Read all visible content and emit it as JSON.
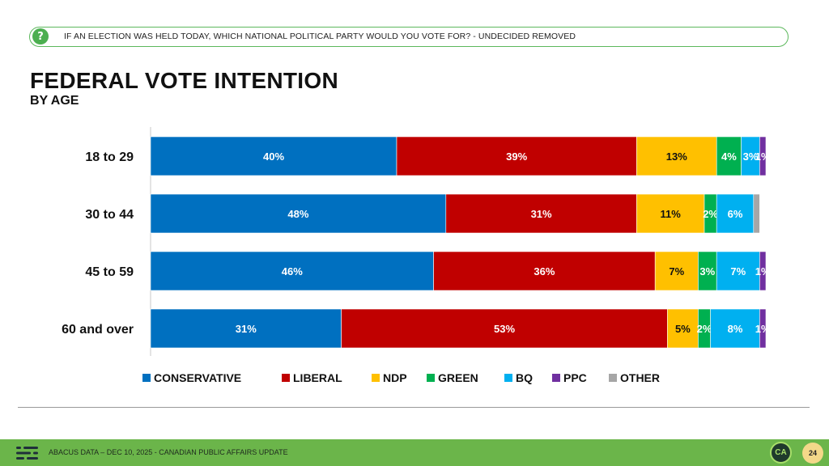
{
  "question": {
    "text": "IF AN ELECTION WAS HELD TODAY, WHICH NATIONAL POLITICAL PARTY WOULD YOU VOTE FOR?   - UNDECIDED REMOVED",
    "icon": "question-mark-icon"
  },
  "title": "FEDERAL VOTE INTENTION",
  "subtitle": "BY AGE",
  "chart_data": {
    "type": "bar",
    "orientation": "horizontal",
    "stacked": true,
    "categories": [
      "18 to 29",
      "30 to 44",
      "45 to 59",
      "60 and over"
    ],
    "series": [
      {
        "name": "CONSERVATIVE",
        "color": "#0070c0",
        "values": [
          40,
          48,
          46,
          31
        ],
        "labels": [
          "40%",
          "48%",
          "46%",
          "31%"
        ]
      },
      {
        "name": "LIBERAL",
        "color": "#c00000",
        "values": [
          39,
          31,
          36,
          53
        ],
        "labels": [
          "39%",
          "31%",
          "36%",
          "53%"
        ]
      },
      {
        "name": "NDP",
        "color": "#ffc000",
        "values": [
          13,
          11,
          7,
          5
        ],
        "labels": [
          "13%",
          "11%",
          "7%",
          "5%"
        ]
      },
      {
        "name": "GREEN",
        "color": "#00b050",
        "values": [
          4,
          2,
          3,
          2
        ],
        "labels": [
          "4%",
          "2%",
          "3%",
          "2%"
        ]
      },
      {
        "name": "BQ",
        "color": "#00b0f0",
        "values": [
          3,
          6,
          7,
          8
        ],
        "labels": [
          "3%",
          "6%",
          "7%",
          "8%"
        ]
      },
      {
        "name": "PPC",
        "color": "#7030a0",
        "values": [
          1,
          0,
          1,
          1
        ],
        "labels": [
          "1%",
          "",
          "1%",
          "1%"
        ]
      },
      {
        "name": "OTHER",
        "color": "#a6a6a6",
        "values": [
          0,
          1,
          0,
          0
        ],
        "labels": [
          "",
          "",
          "",
          ""
        ]
      }
    ],
    "xlim": [
      0,
      100
    ],
    "legend_position": "bottom",
    "grid": false
  },
  "footer": {
    "text": "ABACUS DATA  – DEC 10, 2025 - CANADIAN PUBLIC AFFAIRS UPDATE",
    "logo_text": "CA",
    "page_number": "24"
  }
}
